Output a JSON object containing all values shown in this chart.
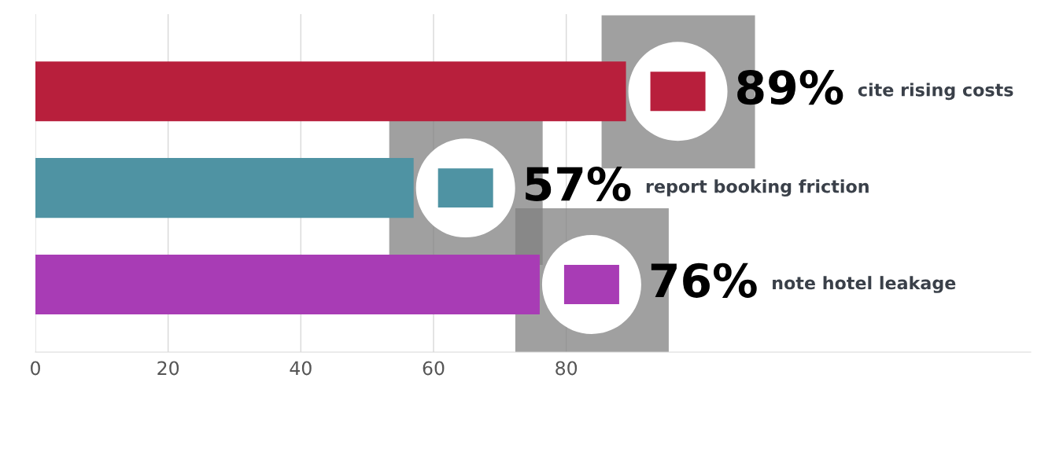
{
  "chart_data": {
    "type": "bar",
    "orientation": "horizontal",
    "categories": [
      null,
      null,
      null
    ],
    "values": [
      89,
      57,
      76
    ],
    "value_labels": [
      "89%",
      "57%",
      "76%"
    ],
    "annotations": [
      "cite rising costs",
      "report booking friction",
      "note hotel leakage"
    ],
    "colors": [
      "#b81f3c",
      "#4f93a3",
      "#a83cb5"
    ],
    "xlim": [
      0,
      150
    ],
    "xticks": [
      0,
      20,
      40,
      60,
      80
    ],
    "grid": "x",
    "tick_labels": "x",
    "legend": false
  }
}
